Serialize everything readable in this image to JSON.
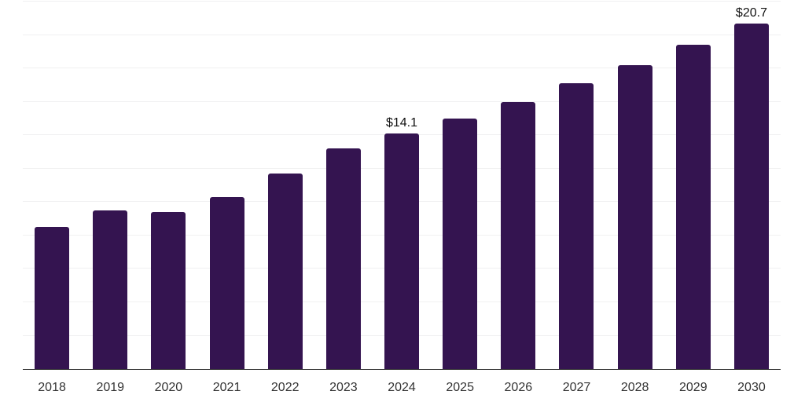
{
  "chart_data": {
    "type": "bar",
    "categories": [
      "2018",
      "2019",
      "2020",
      "2021",
      "2022",
      "2023",
      "2024",
      "2025",
      "2026",
      "2027",
      "2028",
      "2029",
      "2030"
    ],
    "values": [
      8.5,
      9.5,
      9.4,
      10.3,
      11.7,
      13.2,
      14.1,
      15.0,
      16.0,
      17.1,
      18.2,
      19.4,
      20.7
    ],
    "data_labels": [
      {
        "category": "2024",
        "text": "$14.1"
      },
      {
        "category": "2030",
        "text": "$20.7"
      }
    ],
    "title": "",
    "xlabel": "",
    "ylabel": "",
    "ylim": [
      0,
      22.1
    ],
    "gridline_step": 2,
    "grid": true,
    "legend": false,
    "y_tick_labels_visible": false,
    "colors": {
      "bar": "#341450",
      "axis": "#2b2b2b",
      "gridline": "#f0f0f1",
      "x_tick_label": "#333333",
      "data_label": "#111111",
      "background": "#ffffff"
    }
  }
}
